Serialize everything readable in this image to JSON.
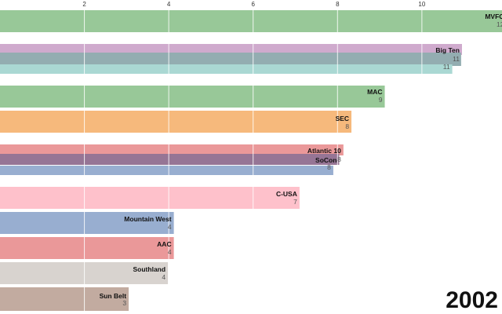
{
  "chart_data": {
    "type": "bar",
    "orientation": "horizontal",
    "year": "2002",
    "xlim": [
      0,
      11.75
    ],
    "x_ticks": [
      2,
      4,
      6,
      8,
      10
    ],
    "grid": true,
    "bars": [
      {
        "name": "MVFC",
        "display_value": "12",
        "value": 12.0,
        "color": "#98c898"
      },
      {
        "name": "Big Ten",
        "display_value": "11",
        "value": 10.95,
        "color": "#cfaacd"
      },
      {
        "name": "",
        "display_value": "",
        "value": 10.93,
        "color": "#93adb1"
      },
      {
        "name": "",
        "display_value": "11",
        "value": 10.72,
        "color": "#aad8d3"
      },
      {
        "name": "MAC",
        "display_value": "9",
        "value": 9.12,
        "color": "#98c898"
      },
      {
        "name": "SEC",
        "display_value": "8",
        "value": 8.33,
        "color": "#f6b97c"
      },
      {
        "name": "Atlantic 10",
        "display_value": "8",
        "value": 8.14,
        "color": "#ea9899"
      },
      {
        "name": "SoCon",
        "display_value": "",
        "value": 8.04,
        "color": "#967595"
      },
      {
        "name": "",
        "display_value": "8",
        "value": 7.9,
        "color": "#98aed0"
      },
      {
        "name": "C-USA",
        "display_value": "7",
        "value": 7.1,
        "color": "#fec1cb"
      },
      {
        "name": "Mountain West",
        "display_value": "4",
        "value": 4.12,
        "color": "#98aed0"
      },
      {
        "name": "AAC",
        "display_value": "4",
        "value": 4.12,
        "color": "#ea9899"
      },
      {
        "name": "Southland",
        "display_value": "4",
        "value": 3.98,
        "color": "#d8d3cf"
      },
      {
        "name": "Sun Belt",
        "display_value": "3",
        "value": 3.05,
        "color": "#c2aba0"
      }
    ]
  }
}
